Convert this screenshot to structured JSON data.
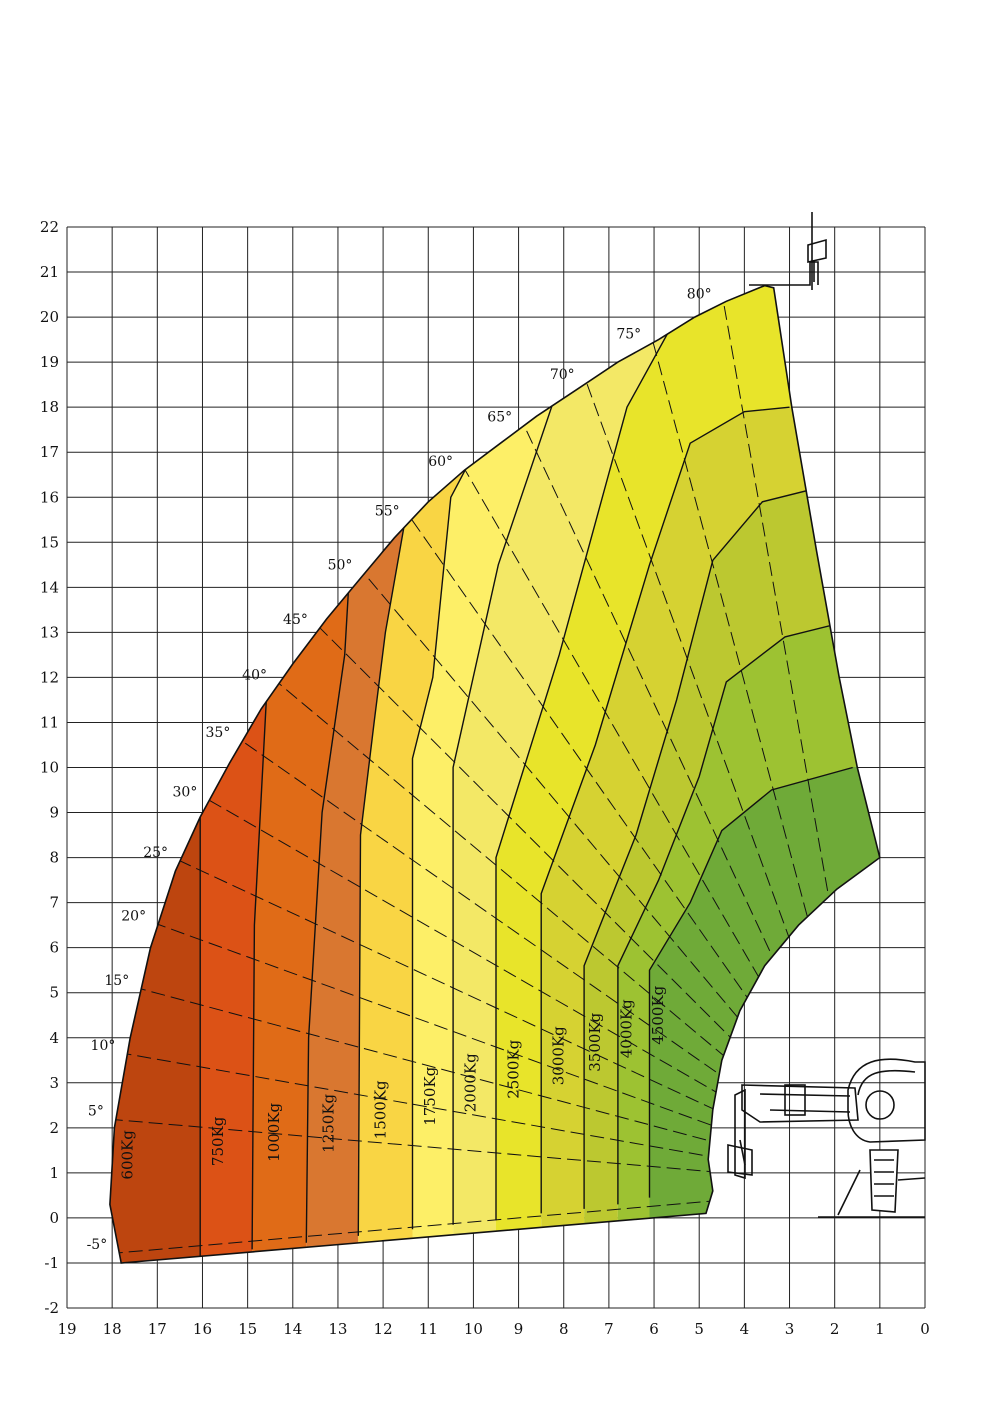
{
  "chart_data": {
    "type": "area",
    "title": "",
    "xlabel": "",
    "ylabel": "",
    "xlim": [
      19,
      0
    ],
    "ylim": [
      -2,
      22
    ],
    "grid": true,
    "x_ticks": [
      "19",
      "18",
      "17",
      "16",
      "15",
      "14",
      "13",
      "12",
      "11",
      "10",
      "9",
      "8",
      "7",
      "6",
      "5",
      "4",
      "3",
      "2",
      "1",
      "0"
    ],
    "y_ticks": [
      "22",
      "21",
      "20",
      "19",
      "18",
      "17",
      "16",
      "15",
      "14",
      "13",
      "12",
      "11",
      "10",
      "9",
      "8",
      "7",
      "6",
      "5",
      "4",
      "3",
      "2",
      "1",
      "0",
      "-1",
      "-2"
    ],
    "pivot": [
      1.0,
      0.7
    ],
    "angles": [
      {
        "label": "-5°",
        "deg": -5
      },
      {
        "label": "5°",
        "deg": 5
      },
      {
        "label": "10°",
        "deg": 10
      },
      {
        "label": "15°",
        "deg": 15
      },
      {
        "label": "20°",
        "deg": 20
      },
      {
        "label": "25°",
        "deg": 25
      },
      {
        "label": "30°",
        "deg": 30
      },
      {
        "label": "35°",
        "deg": 35
      },
      {
        "label": "40°",
        "deg": 40
      },
      {
        "label": "45°",
        "deg": 45
      },
      {
        "label": "50°",
        "deg": 50
      },
      {
        "label": "55°",
        "deg": 55
      },
      {
        "label": "60°",
        "deg": 60
      },
      {
        "label": "65°",
        "deg": 65
      },
      {
        "label": "70°",
        "deg": 70
      },
      {
        "label": "75°",
        "deg": 75
      },
      {
        "label": "80°",
        "deg": 80
      }
    ],
    "outer_boundary": [
      [
        17.8,
        -1.0
      ],
      [
        18.05,
        0.3
      ],
      [
        17.95,
        2.0
      ],
      [
        17.6,
        4.0
      ],
      [
        17.15,
        6.0
      ],
      [
        16.6,
        7.7
      ],
      [
        16.05,
        8.9
      ],
      [
        15.4,
        10.1
      ],
      [
        14.7,
        11.3
      ],
      [
        14.0,
        12.3
      ],
      [
        13.25,
        13.3
      ],
      [
        12.5,
        14.2
      ],
      [
        11.75,
        15.1
      ],
      [
        11.0,
        15.9
      ],
      [
        10.2,
        16.6
      ],
      [
        9.4,
        17.2
      ],
      [
        8.6,
        17.8
      ],
      [
        7.7,
        18.4
      ],
      [
        6.8,
        19.0
      ],
      [
        5.9,
        19.5
      ],
      [
        5.1,
        20.0
      ],
      [
        4.4,
        20.35
      ],
      [
        3.55,
        20.7
      ]
    ],
    "inner_boundary": [
      [
        3.35,
        20.65
      ],
      [
        2.95,
        18.0
      ],
      [
        2.4,
        14.8
      ],
      [
        1.9,
        12.0
      ],
      [
        1.5,
        10.0
      ],
      [
        1.0,
        8.0
      ],
      [
        1.95,
        7.3
      ],
      [
        2.8,
        6.5
      ],
      [
        3.55,
        5.6
      ],
      [
        4.1,
        4.6
      ],
      [
        4.5,
        3.5
      ],
      [
        4.7,
        2.4
      ],
      [
        4.8,
        1.3
      ],
      [
        4.7,
        0.6
      ],
      [
        4.85,
        0.1
      ]
    ],
    "zones": [
      {
        "label": "600Kg",
        "color": "#bd450f",
        "x": 17.55
      },
      {
        "label": "750Kg",
        "color": "#dc5216",
        "x": 15.55
      },
      {
        "label": "1000Kg",
        "color": "#e06b17",
        "x": 14.3
      },
      {
        "label": "1250Kg",
        "color": "#d97730",
        "x": 13.1
      },
      {
        "label": "1500Kg",
        "color": "#f9d544",
        "x": 11.95
      },
      {
        "label": "1750Kg",
        "color": "#fdef67",
        "x": 10.85
      },
      {
        "label": "2000Kg",
        "color": "#f3e866",
        "x": 9.95
      },
      {
        "label": "2500Kg",
        "color": "#e8e42a",
        "x": 9.0
      },
      {
        "label": "3000Kg",
        "color": "#d6d232",
        "x": 8.0
      },
      {
        "label": "3500Kg",
        "color": "#bcc830",
        "x": 7.2
      },
      {
        "label": "4000Kg",
        "color": "#9dc232",
        "x": 6.5
      },
      {
        "label": "4500Kg",
        "color": "#6faa38",
        "x": 5.8
      }
    ],
    "load_lines": [
      [
        [
          16.05,
          -0.85
        ],
        [
          16.05,
          10.0
        ]
      ],
      [
        [
          14.9,
          -0.7
        ],
        [
          14.85,
          6.5
        ],
        [
          14.55,
          12.2
        ],
        [
          14.45,
          13.5
        ]
      ],
      [
        [
          13.7,
          -0.55
        ],
        [
          13.65,
          4.0
        ],
        [
          13.35,
          9.0
        ],
        [
          12.85,
          12.5
        ],
        [
          12.7,
          15.1
        ]
      ],
      [
        [
          12.55,
          -0.4
        ],
        [
          12.5,
          8.5
        ],
        [
          12.2,
          11.0
        ],
        [
          11.95,
          13.0
        ],
        [
          11.3,
          16.7
        ]
      ],
      [
        [
          11.35,
          -0.25
        ],
        [
          11.35,
          10.2
        ],
        [
          10.9,
          12.0
        ],
        [
          10.5,
          16.0
        ],
        [
          9.45,
          18.0
        ]
      ],
      [
        [
          10.45,
          -0.15
        ],
        [
          10.45,
          10.0
        ],
        [
          9.45,
          14.5
        ],
        [
          8.0,
          18.8
        ]
      ],
      [
        [
          9.5,
          -0.05
        ],
        [
          9.5,
          8.0
        ],
        [
          8.1,
          12.5
        ],
        [
          6.6,
          18.0
        ],
        [
          5.5,
          20.0
        ]
      ],
      [
        [
          8.5,
          0.1
        ],
        [
          8.5,
          7.2
        ],
        [
          7.3,
          10.5
        ],
        [
          6.1,
          14.5
        ],
        [
          5.2,
          17.2
        ],
        [
          4.0,
          17.9
        ],
        [
          3.0,
          18.0
        ]
      ],
      [
        [
          7.55,
          0.2
        ],
        [
          7.55,
          5.6
        ],
        [
          6.4,
          8.5
        ],
        [
          5.5,
          11.5
        ],
        [
          4.7,
          14.6
        ],
        [
          3.6,
          15.9
        ],
        [
          2.4,
          16.2
        ]
      ],
      [
        [
          6.8,
          0.3
        ],
        [
          6.8,
          5.6
        ],
        [
          5.9,
          7.5
        ],
        [
          5.0,
          9.8
        ],
        [
          4.4,
          11.9
        ],
        [
          3.1,
          12.9
        ],
        [
          1.9,
          13.2
        ]
      ],
      [
        [
          6.1,
          0.45
        ],
        [
          6.1,
          5.5
        ],
        [
          5.2,
          7.0
        ],
        [
          4.5,
          8.6
        ],
        [
          3.4,
          9.5
        ],
        [
          1.6,
          10.0
        ]
      ]
    ],
    "vehicle": {
      "type": "telehandler",
      "side": "right"
    }
  }
}
